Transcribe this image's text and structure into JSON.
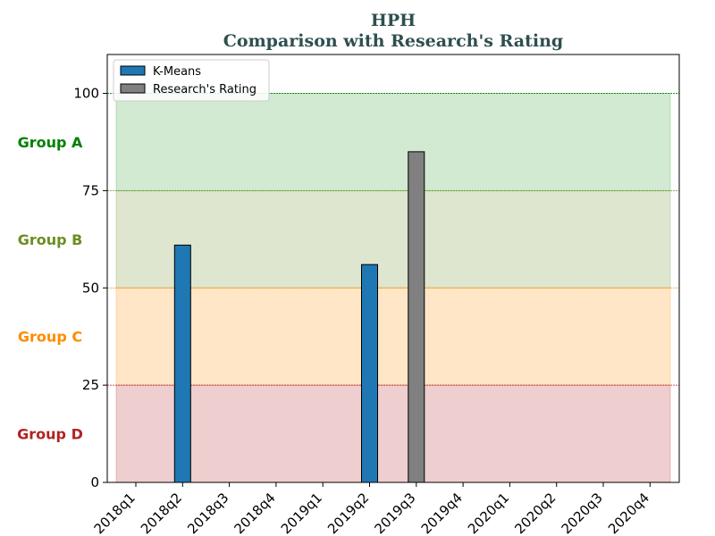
{
  "chart_data": {
    "type": "bar",
    "title": "HPH",
    "subtitle": "Comparison with Research's Rating",
    "categories": [
      "2018q1",
      "2018q2",
      "2018q3",
      "2018q4",
      "2019q1",
      "2019q2",
      "2019q3",
      "2019q4",
      "2020q1",
      "2020q2",
      "2020q3",
      "2020q4"
    ],
    "series": [
      {
        "name": "K-Means",
        "color": "#1f77b4",
        "values": [
          null,
          61,
          null,
          null,
          null,
          56,
          null,
          null,
          null,
          null,
          null,
          null
        ]
      },
      {
        "name": "Research's Rating",
        "color": "#808080",
        "values": [
          null,
          null,
          null,
          null,
          null,
          null,
          85,
          null,
          null,
          null,
          null,
          null
        ]
      }
    ],
    "ylim": [
      0,
      110
    ],
    "yticks": [
      0,
      25,
      50,
      75,
      100
    ],
    "bands": [
      {
        "label": "Group A",
        "from": 75,
        "to": 100,
        "fill": "#2ca02c",
        "label_color": "#008000",
        "line_color": "#008000"
      },
      {
        "label": "Group B",
        "from": 50,
        "to": 75,
        "fill": "#6b8e23",
        "label_color": "#6b8e23",
        "line_color": "#6b8e23"
      },
      {
        "label": "Group C",
        "from": 25,
        "to": 50,
        "fill": "#ff8c00",
        "label_color": "#ff8c00",
        "line_color": "#ff8c00"
      },
      {
        "label": "Group D",
        "from": 0,
        "to": 25,
        "fill": "#b22222",
        "label_color": "#b22222",
        "line_color": "#b22222"
      }
    ],
    "legend_position": "top-left",
    "grid": false
  }
}
